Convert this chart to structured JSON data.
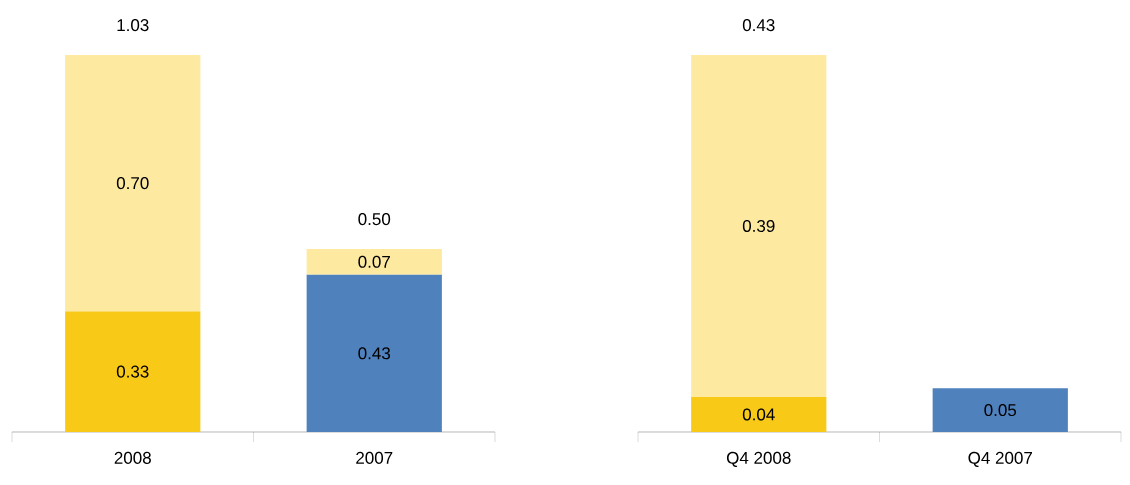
{
  "chart_data": [
    {
      "type": "bar",
      "stacked": true,
      "categories": [
        "2008",
        "2007"
      ],
      "series": [
        {
          "colors": [
            "#f9c918",
            "#4f81bd"
          ],
          "values": [
            0.33,
            0.43
          ],
          "value_labels": [
            "0.33",
            "0.43"
          ]
        },
        {
          "color": "#fde9a0",
          "values": [
            0.7,
            0.07
          ],
          "value_labels": [
            "0.70",
            "0.07"
          ]
        }
      ],
      "totals": [
        "1.03",
        "0.50"
      ]
    },
    {
      "type": "bar",
      "stacked": true,
      "categories": [
        "Q4 2008",
        "Q4 2007"
      ],
      "series": [
        {
          "colors": [
            "#f9c918",
            "#4f81bd"
          ],
          "values": [
            0.04,
            0.05
          ],
          "value_labels": [
            "0.04",
            "0.05"
          ]
        },
        {
          "color": "#fde9a0",
          "values": [
            0.39,
            null
          ],
          "value_labels": [
            "0.39",
            null
          ]
        }
      ],
      "totals": [
        "0.43",
        null
      ]
    }
  ]
}
